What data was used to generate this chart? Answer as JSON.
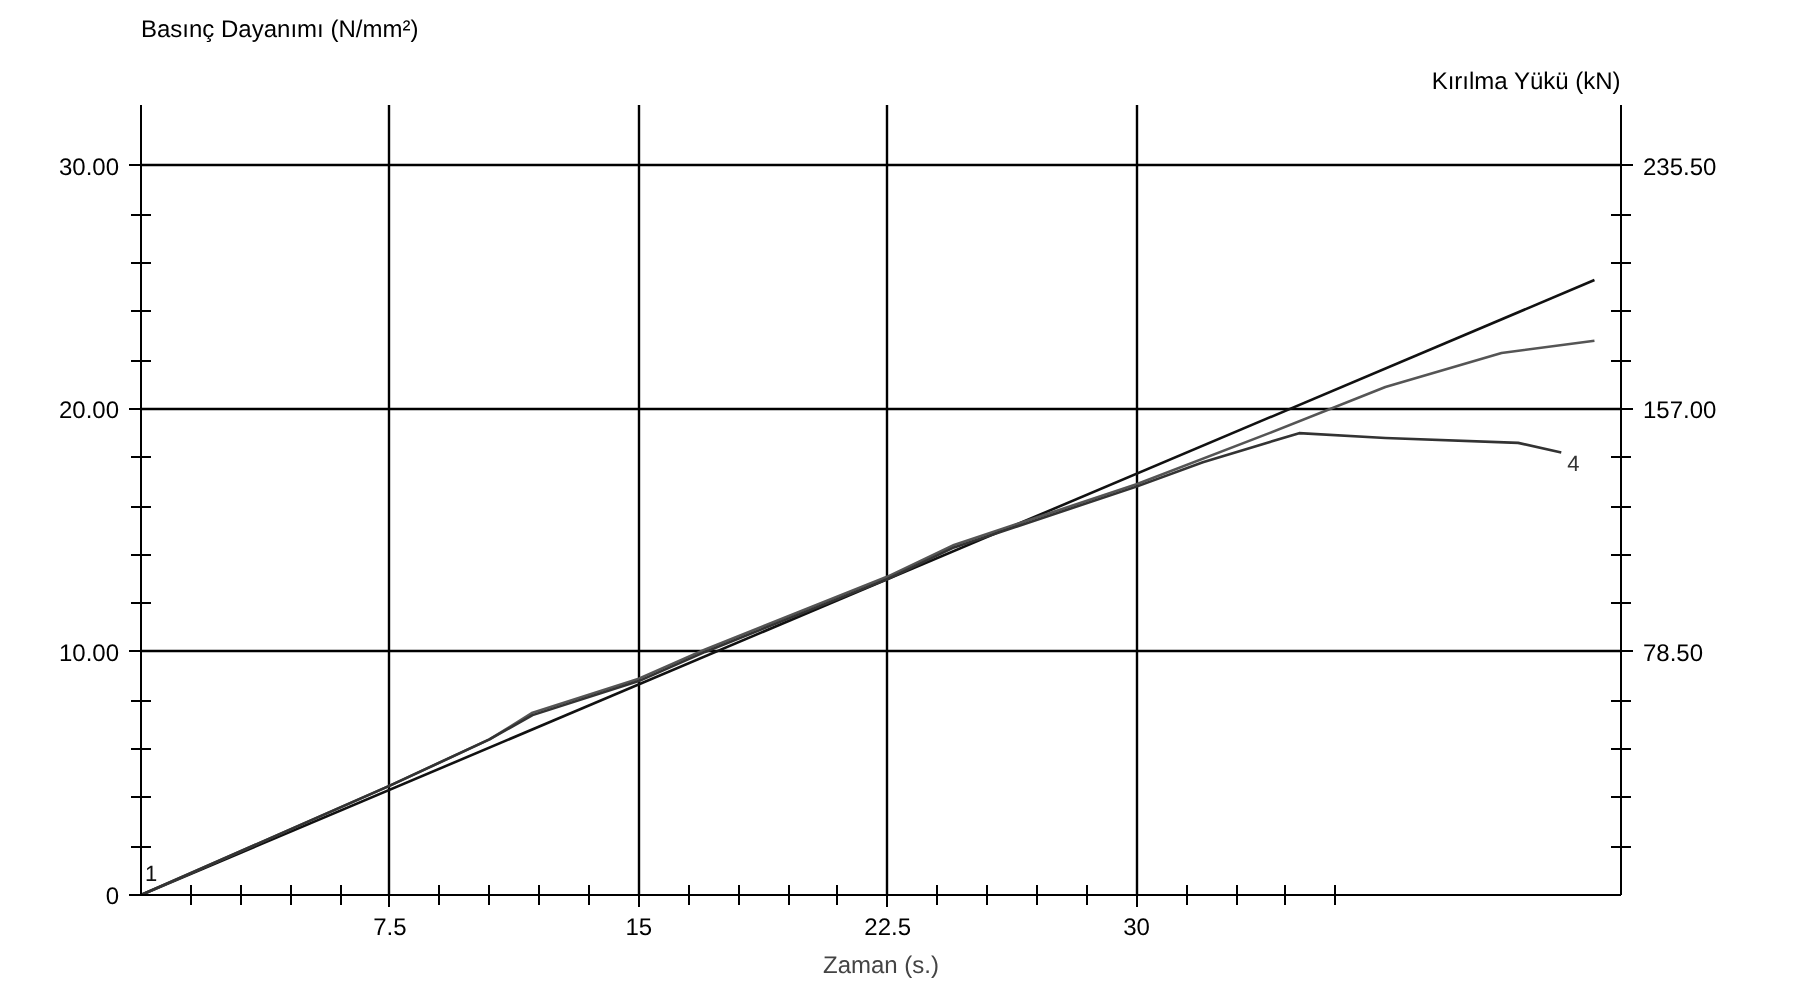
{
  "chart_data": {
    "type": "line",
    "xlabel": "Zaman (s.)",
    "ylabel": "Basınç Dayanımı (N/mm²)",
    "y2label": "Kırılma Yükü (kN)",
    "xlim": [
      0,
      44.6
    ],
    "ylim": [
      0,
      32.5
    ],
    "y2lim": [
      0,
      255.1
    ],
    "xticks": [
      {
        "value": 1.5,
        "label": null
      },
      {
        "value": 3,
        "label": null
      },
      {
        "value": 4.5,
        "label": null
      },
      {
        "value": 6,
        "label": null
      },
      7.5,
      {
        "value": 9,
        "label": null
      },
      {
        "value": 10.5,
        "label": null
      },
      {
        "value": 12,
        "label": null
      },
      {
        "value": 13.5,
        "label": null
      },
      15,
      {
        "value": 16.5,
        "label": null
      },
      {
        "value": 18,
        "label": null
      },
      {
        "value": 19.5,
        "label": null
      },
      {
        "value": 21,
        "label": null
      },
      22.5,
      {
        "value": 24,
        "label": null
      },
      {
        "value": 25.5,
        "label": null
      },
      {
        "value": 27,
        "label": null
      },
      {
        "value": 28.5,
        "label": null
      },
      30,
      {
        "value": 31.5,
        "label": null
      },
      {
        "value": 33,
        "label": null
      },
      {
        "value": 34.5,
        "label": null
      },
      {
        "value": 36,
        "label": null
      }
    ],
    "yticks": [
      0,
      {
        "value": 2,
        "label": null
      },
      {
        "value": 4,
        "label": null
      },
      {
        "value": 6,
        "label": null
      },
      {
        "value": 8,
        "label": null
      },
      {
        "value": 10,
        "label": "10.00"
      },
      {
        "value": 12,
        "label": null
      },
      {
        "value": 14,
        "label": null
      },
      {
        "value": 16,
        "label": null
      },
      {
        "value": 18,
        "label": null
      },
      {
        "value": 20,
        "label": "20.00"
      },
      {
        "value": 22,
        "label": null
      },
      {
        "value": 24,
        "label": null
      },
      {
        "value": 26,
        "label": null
      },
      {
        "value": 28,
        "label": null
      },
      {
        "value": 30,
        "label": "30.00"
      }
    ],
    "y2ticks": [
      {
        "value": 15.7,
        "label": null
      },
      {
        "value": 31.4,
        "label": null
      },
      {
        "value": 47.1,
        "label": null
      },
      {
        "value": 62.8,
        "label": null
      },
      {
        "value": 78.5,
        "label": "78.50"
      },
      {
        "value": 94.2,
        "label": null
      },
      {
        "value": 109.9,
        "label": null
      },
      {
        "value": 125.6,
        "label": null
      },
      {
        "value": 141.3,
        "label": null
      },
      {
        "value": 157,
        "label": "157.00"
      },
      {
        "value": 172.7,
        "label": null
      },
      {
        "value": 188.4,
        "label": null
      },
      {
        "value": 204.1,
        "label": null
      },
      {
        "value": 219.8,
        "label": null
      },
      {
        "value": 235.5,
        "label": "235.50"
      }
    ],
    "grid": true,
    "legend": false,
    "marker": "none",
    "line_style": "solid",
    "series": [
      {
        "name": "1",
        "color": "#111111",
        "x": [
          0,
          43.8
        ],
        "values": [
          0,
          25.3
        ]
      },
      {
        "color": "#555555",
        "x": [
          0,
          7.5,
          10.5,
          11.8,
          15,
          17,
          22.5,
          24.5,
          30,
          34,
          37.5,
          41,
          43.8
        ],
        "values": [
          0,
          4.5,
          6.4,
          7.5,
          8.9,
          10.1,
          13.1,
          14.4,
          16.9,
          19.0,
          20.9,
          22.3,
          22.8
        ]
      },
      {
        "name": "4",
        "color": "#333333",
        "x": [
          0,
          7.5,
          10.5,
          11.8,
          15,
          17,
          22.5,
          24.5,
          30,
          32,
          34.9,
          37.5,
          41.5,
          42.8
        ],
        "values": [
          0,
          4.5,
          6.4,
          7.4,
          8.8,
          10.0,
          13.0,
          14.3,
          16.8,
          17.8,
          19.0,
          18.8,
          18.6,
          18.2
        ]
      }
    ]
  }
}
